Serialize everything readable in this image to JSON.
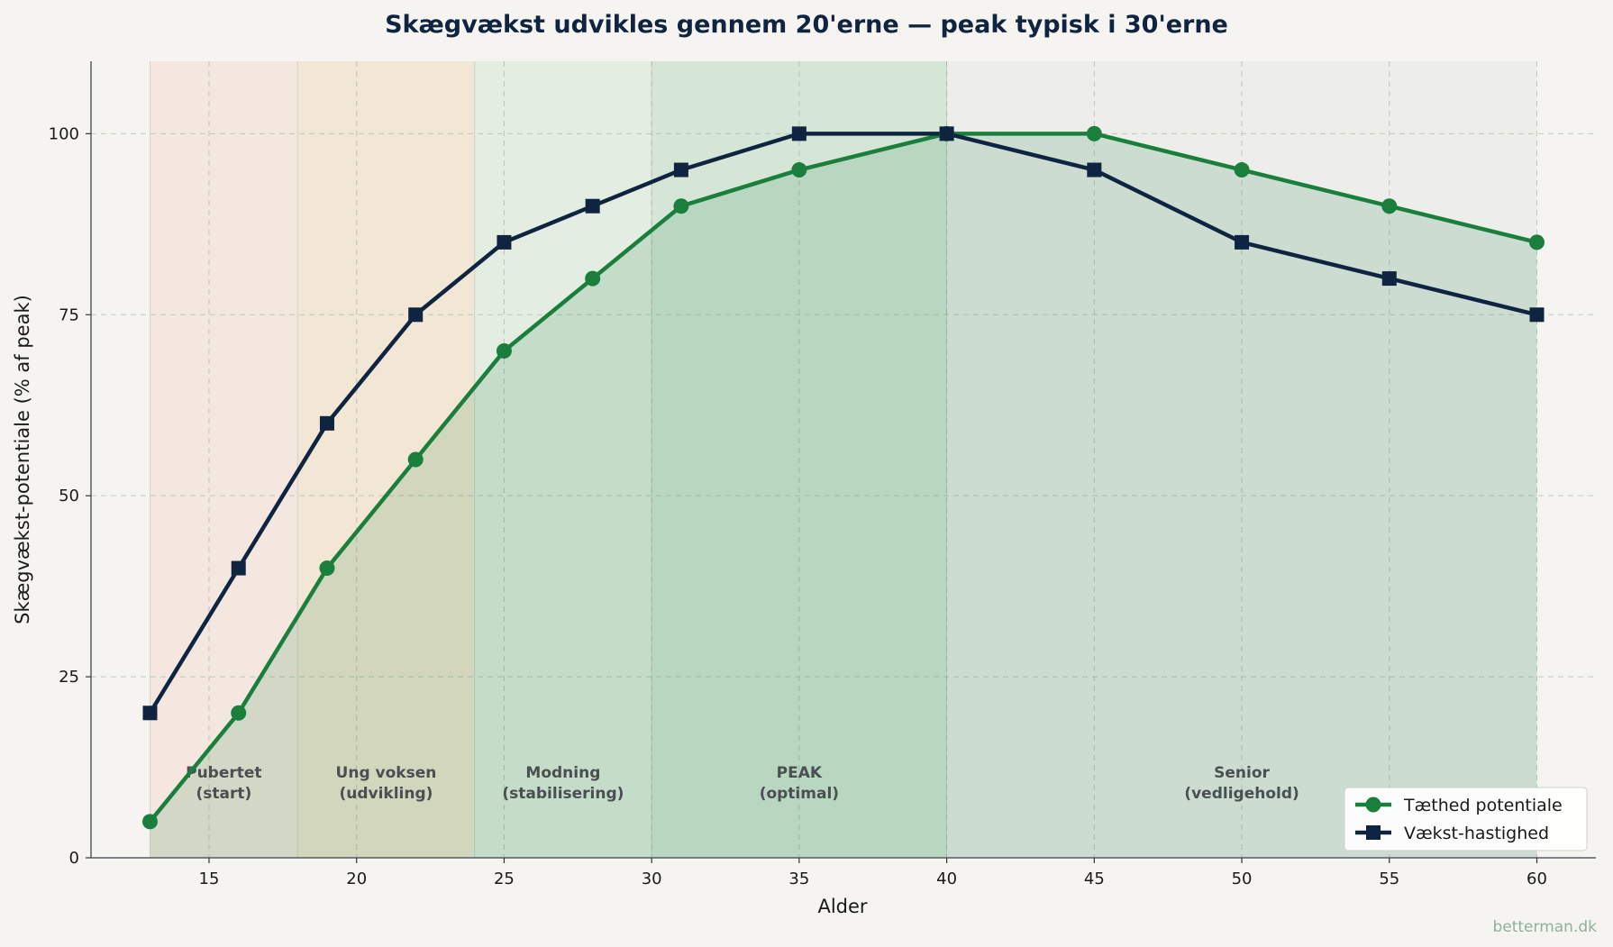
{
  "chart_data": {
    "type": "line",
    "title": "Skægvækst udvikles gennem 20'erne — peak typisk i 30'erne",
    "xlabel": "Alder",
    "ylabel": "Skægvækst-potentiale (% af peak)",
    "xlim": [
      11,
      62
    ],
    "ylim": [
      0,
      110
    ],
    "xticks": [
      15,
      20,
      25,
      30,
      35,
      40,
      45,
      50,
      55,
      60
    ],
    "yticks": [
      0,
      25,
      50,
      75,
      100
    ],
    "grid": true,
    "legend_position": "lower-right",
    "stages": [
      {
        "from": 13,
        "to": 18,
        "label_line1": "Pubertet",
        "label_line2": "(start)",
        "color": "#f2e4dc"
      },
      {
        "from": 18,
        "to": 24,
        "label_line1": "Ung voksen",
        "label_line2": "(udvikling)",
        "color": "#f1e3cf"
      },
      {
        "from": 24,
        "to": 30,
        "label_line1": "Modning",
        "label_line2": "(stabilisering)",
        "color": "#dfebdf"
      },
      {
        "from": 30,
        "to": 40,
        "label_line1": "PEAK",
        "label_line2": "(optimal)",
        "color": "#cfe3d2"
      },
      {
        "from": 40,
        "to": 60,
        "label_line1": "Senior",
        "label_line2": "(vedligehold)",
        "color": "#ebebe9"
      }
    ],
    "series": [
      {
        "name": "Tæthed potentiale",
        "color": "#1a7f3c",
        "marker": "circle",
        "fill": true,
        "x": [
          13,
          16,
          19,
          22,
          25,
          28,
          31,
          35,
          40,
          45,
          50,
          55,
          60
        ],
        "values": [
          5,
          20,
          40,
          55,
          70,
          80,
          90,
          95,
          100,
          100,
          95,
          90,
          85
        ]
      },
      {
        "name": "Vækst-hastighed",
        "color": "#0f2440",
        "marker": "square",
        "fill": false,
        "x": [
          13,
          16,
          19,
          22,
          25,
          28,
          31,
          35,
          40,
          45,
          50,
          55,
          60
        ],
        "values": [
          20,
          40,
          60,
          75,
          85,
          90,
          95,
          100,
          100,
          95,
          85,
          80,
          75
        ]
      }
    ]
  },
  "watermark": "betterman.dk"
}
